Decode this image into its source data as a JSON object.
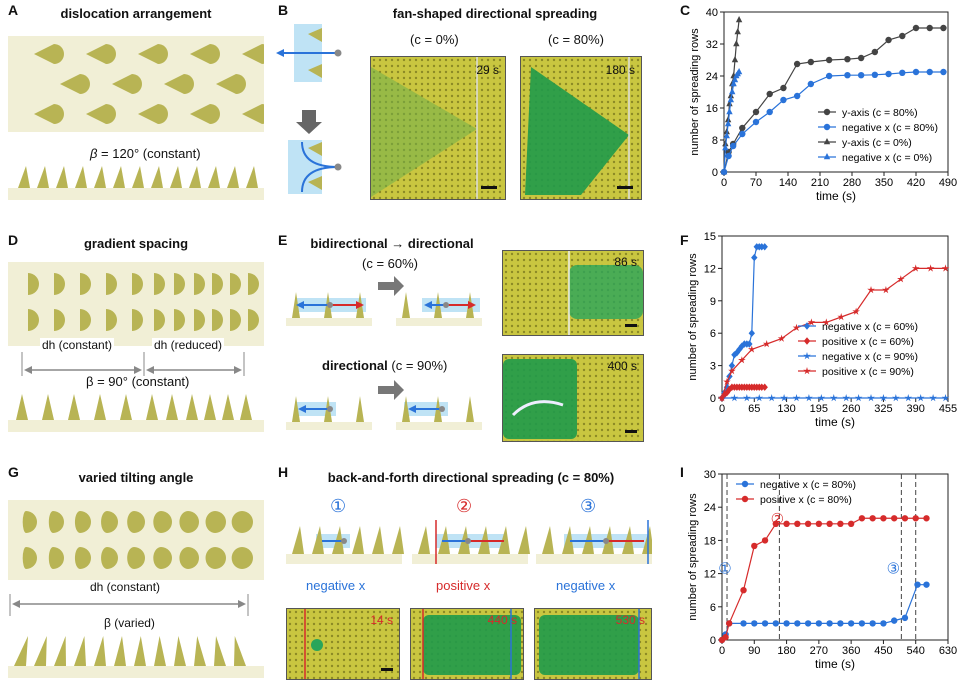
{
  "colors": {
    "olive": "#b8b454",
    "beige": "#f1efd6",
    "blue": "#2a73d9",
    "red": "#d62b2b",
    "dark": "#444444",
    "light_blue": "#bfe3f5",
    "photo_green": "#1f9a4a",
    "photo_yellow": "#c9c640"
  },
  "panelA": {
    "label": "A",
    "title": "dislocation arrangement",
    "beta_prefix": "β",
    "beta_text": " = 120° (constant)"
  },
  "panelB": {
    "label": "B",
    "title": "fan-shaped directional spreading",
    "cond1": "(c = 0%)",
    "cond2": "(c = 80%)",
    "time1": "29 s",
    "time2": "180 s"
  },
  "panelD": {
    "label": "D",
    "title": "gradient spacing",
    "dh_left": "dh (constant)",
    "dh_right": "dh (reduced)",
    "beta_text": "β = 90° (constant)"
  },
  "panelE": {
    "label": "E",
    "title1": "bidirectional → directional",
    "cond1": "(c = 60%)",
    "title2_bold": "directional",
    "cond2": "(c = 90%)",
    "time1": "86 s",
    "time2": "400 s"
  },
  "panelG": {
    "label": "G",
    "title": "varied tilting angle",
    "dh_text": "dh (constant)",
    "beta_text": "β (varied)"
  },
  "panelH": {
    "label": "H",
    "title": "back-and-forth directional spreading (c = 80%)",
    "steps": [
      "①",
      "②",
      "③"
    ],
    "dirs": [
      "negative x",
      "positive x",
      "negative x"
    ],
    "times": [
      "14 s",
      "440 s",
      "530 s"
    ]
  },
  "chart_data": [
    {
      "panel": "C",
      "type": "line",
      "xlabel": "time (s)",
      "ylabel": "number of spreading rows",
      "xlim": [
        0,
        490
      ],
      "ylim": [
        0,
        40
      ],
      "xticks": [
        0,
        70,
        140,
        210,
        280,
        350,
        420,
        490
      ],
      "yticks": [
        0,
        8,
        16,
        24,
        32,
        40
      ],
      "series": [
        {
          "name": "y-axis (c = 80%)",
          "color": "#444444",
          "marker": "circle",
          "x": [
            0,
            10,
            20,
            40,
            70,
            100,
            130,
            160,
            190,
            230,
            270,
            300,
            330,
            360,
            390,
            420,
            450,
            480
          ],
          "y": [
            0,
            5,
            7,
            11,
            15,
            19.5,
            21,
            27,
            27.5,
            28,
            28.2,
            28.5,
            30,
            33,
            34,
            36,
            36,
            36
          ]
        },
        {
          "name": "negative x (c = 80%)",
          "color": "#2a73d9",
          "marker": "circle",
          "x": [
            0,
            10,
            20,
            40,
            70,
            100,
            130,
            160,
            190,
            230,
            270,
            300,
            330,
            360,
            390,
            420,
            450,
            480
          ],
          "y": [
            0,
            4,
            6.5,
            9.5,
            12.5,
            15,
            18,
            19,
            22,
            24,
            24.2,
            24.2,
            24.3,
            24.5,
            24.8,
            25,
            25,
            25
          ]
        },
        {
          "name": "y-axis (c = 0%)",
          "color": "#444444",
          "marker": "triangle",
          "x": [
            0,
            3,
            6,
            9,
            12,
            15,
            18,
            21,
            24,
            27,
            30,
            33
          ],
          "y": [
            0,
            7,
            10,
            13,
            17,
            19,
            22,
            24,
            28,
            32,
            35,
            38
          ]
        },
        {
          "name": "negative x (c = 0%)",
          "color": "#2a73d9",
          "marker": "triangle",
          "x": [
            0,
            3,
            6,
            9,
            12,
            15,
            18,
            21,
            24,
            27,
            30,
            33
          ],
          "y": [
            0,
            6,
            9,
            12,
            15,
            18,
            20,
            22,
            23,
            24,
            24.5,
            25
          ]
        }
      ]
    },
    {
      "panel": "F",
      "type": "line",
      "xlabel": "time (s)",
      "ylabel": "number of spreading rows",
      "xlim": [
        0,
        455
      ],
      "ylim": [
        0,
        15
      ],
      "xticks": [
        0,
        65,
        130,
        195,
        260,
        325,
        390,
        455
      ],
      "yticks": [
        0,
        3,
        6,
        9,
        12,
        15
      ],
      "series": [
        {
          "name": "negative x (c = 60%)",
          "color": "#2a73d9",
          "marker": "diamond",
          "x": [
            0,
            5,
            10,
            15,
            20,
            25,
            30,
            35,
            40,
            45,
            50,
            55,
            60,
            65,
            70,
            75,
            80,
            86
          ],
          "y": [
            0,
            0.5,
            1,
            2,
            3,
            4,
            4.2,
            4.5,
            4.8,
            5,
            5,
            5,
            6,
            13,
            14,
            14,
            14,
            14
          ]
        },
        {
          "name": "positive x (c = 60%)",
          "color": "#d62b2b",
          "marker": "diamond",
          "x": [
            0,
            5,
            10,
            15,
            20,
            25,
            30,
            35,
            40,
            45,
            50,
            55,
            60,
            65,
            70,
            75,
            80,
            86
          ],
          "y": [
            0,
            0.3,
            0.5,
            0.8,
            1,
            1,
            1,
            1,
            1,
            1,
            1,
            1,
            1,
            1,
            1,
            1,
            1,
            1
          ]
        },
        {
          "name": "negative x (c = 90%)",
          "color": "#2a73d9",
          "marker": "star",
          "x": [
            0,
            25,
            50,
            75,
            100,
            125,
            150,
            175,
            200,
            225,
            250,
            275,
            300,
            325,
            350,
            375,
            400,
            425,
            450
          ],
          "y": [
            0,
            0,
            0,
            0,
            0,
            0,
            0,
            0,
            0,
            0,
            0,
            0,
            0,
            0,
            0,
            0,
            0,
            0,
            0
          ]
        },
        {
          "name": "positive x (c = 90%)",
          "color": "#d62b2b",
          "marker": "star",
          "x": [
            0,
            10,
            20,
            40,
            60,
            90,
            120,
            150,
            180,
            210,
            240,
            270,
            300,
            330,
            360,
            390,
            420,
            450
          ],
          "y": [
            0,
            1.5,
            2.5,
            3.5,
            4.5,
            5,
            5.5,
            6.5,
            7,
            7,
            7.5,
            8,
            10,
            10,
            11,
            12,
            12,
            12
          ]
        }
      ]
    },
    {
      "panel": "I",
      "type": "line",
      "xlabel": "time (s)",
      "ylabel": "number of spreading rows",
      "xlim": [
        0,
        630
      ],
      "ylim": [
        0,
        30
      ],
      "xticks": [
        0,
        90,
        180,
        270,
        360,
        450,
        540,
        630
      ],
      "yticks": [
        0,
        6,
        12,
        18,
        24,
        30
      ],
      "annotations": [
        {
          "label": "①",
          "x": 14
        },
        {
          "label": "②",
          "x": 160
        },
        {
          "label": "③",
          "x": 500
        }
      ],
      "markers_x": [
        14,
        160,
        500,
        540
      ],
      "series": [
        {
          "name": "negative x (c = 80%)",
          "color": "#2a73d9",
          "marker": "circle",
          "x": [
            0,
            10,
            20,
            60,
            90,
            120,
            150,
            180,
            210,
            240,
            270,
            300,
            330,
            360,
            390,
            420,
            450,
            480,
            510,
            545,
            570
          ],
          "y": [
            0,
            1,
            3,
            3,
            3,
            3,
            3,
            3,
            3,
            3,
            3,
            3,
            3,
            3,
            3,
            3,
            3,
            3.5,
            4,
            10,
            10
          ]
        },
        {
          "name": "positive x (c = 80%)",
          "color": "#d62b2b",
          "marker": "circle",
          "x": [
            0,
            10,
            20,
            60,
            90,
            120,
            150,
            180,
            210,
            240,
            270,
            300,
            330,
            360,
            390,
            420,
            450,
            480,
            510,
            540,
            570
          ],
          "y": [
            0,
            0.5,
            3,
            9,
            17,
            18,
            21,
            21,
            21,
            21,
            21,
            21,
            21,
            21,
            22,
            22,
            22,
            22,
            22,
            22,
            22
          ]
        }
      ]
    }
  ]
}
